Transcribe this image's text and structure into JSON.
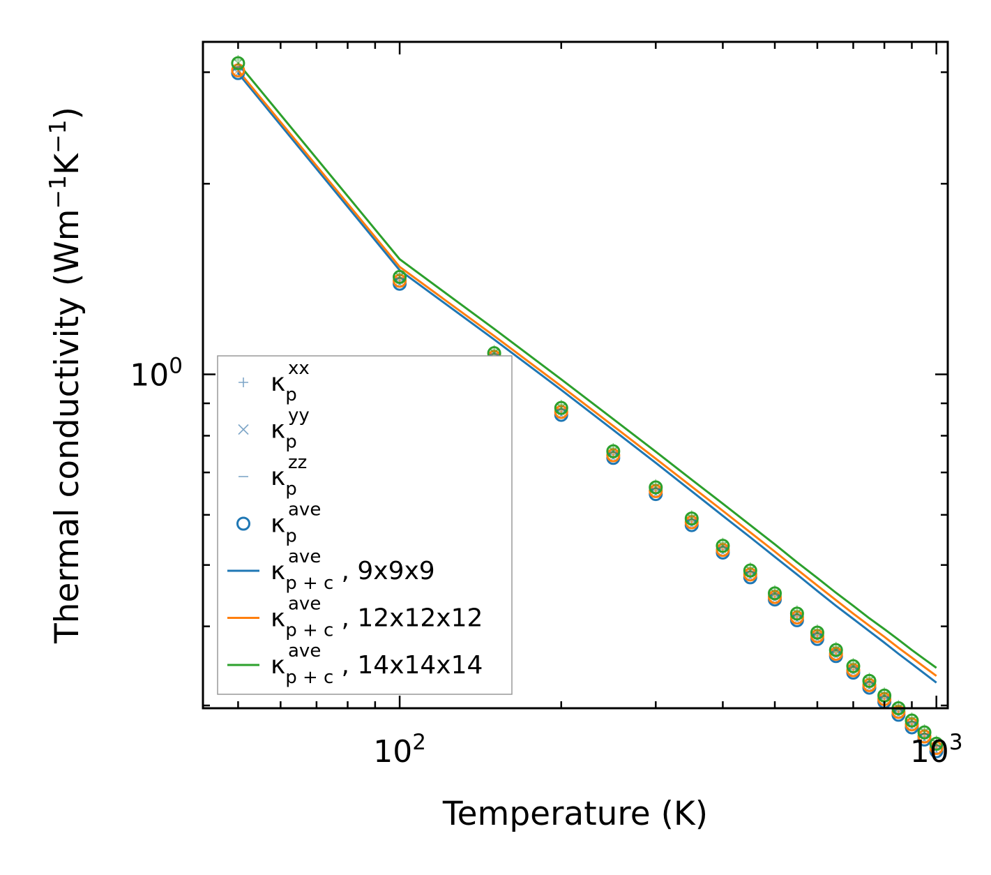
{
  "chart_data": {
    "type": "line",
    "xscale": "log",
    "yscale": "log",
    "xlabel": "Temperature (K)",
    "ylabel": {
      "main": "Thermal conductivity (Wm",
      "sup1": "−1",
      "mid": "K",
      "sup2": "−1",
      "end": ")"
    },
    "xlim": [
      43,
      1050
    ],
    "ylim": [
      0.297,
      3.35
    ],
    "xticks": [
      {
        "value": 100,
        "base": "10",
        "exp": "2"
      },
      {
        "value": 1000,
        "base": "10",
        "exp": "3"
      }
    ],
    "yticks": [
      {
        "value": 1.0,
        "base": "10",
        "exp": "0"
      }
    ],
    "x": [
      50,
      100,
      150,
      200,
      250,
      300,
      350,
      400,
      450,
      500,
      550,
      600,
      650,
      700,
      750,
      800,
      850,
      900,
      950,
      1000
    ],
    "series_lines": [
      {
        "name": "9x9x9",
        "color": "#1f77b4",
        "values": [
          2.99,
          1.46,
          1.135,
          0.945,
          0.817,
          0.725,
          0.654,
          0.598,
          0.553,
          0.515,
          0.483,
          0.455,
          0.431,
          0.411,
          0.393,
          0.377,
          0.362,
          0.349,
          0.337,
          0.326
        ]
      },
      {
        "name": "12x12x12",
        "color": "#ff7f0e",
        "values": [
          3.02,
          1.478,
          1.15,
          0.958,
          0.829,
          0.736,
          0.665,
          0.609,
          0.563,
          0.525,
          0.492,
          0.464,
          0.44,
          0.419,
          0.401,
          0.385,
          0.37,
          0.357,
          0.345,
          0.334
        ]
      },
      {
        "name": "14x14x14",
        "color": "#2ca02c",
        "values": [
          3.1,
          1.52,
          1.18,
          0.982,
          0.85,
          0.755,
          0.682,
          0.625,
          0.578,
          0.539,
          0.505,
          0.477,
          0.452,
          0.431,
          0.412,
          0.396,
          0.381,
          0.367,
          0.355,
          0.344
        ]
      }
    ],
    "series_markers": [
      {
        "name": "ave 9x9x9",
        "color": "#1f77b4",
        "values": [
          2.99,
          1.39,
          1.055,
          0.863,
          0.738,
          0.647,
          0.578,
          0.523,
          0.478,
          0.441,
          0.409,
          0.382,
          0.359,
          0.338,
          0.32,
          0.304,
          0.29,
          0.277,
          0.265,
          0.254
        ]
      },
      {
        "name": "ave 12x12x12",
        "color": "#ff7f0e",
        "values": [
          3.02,
          1.405,
          1.065,
          0.872,
          0.745,
          0.654,
          0.584,
          0.528,
          0.483,
          0.445,
          0.413,
          0.386,
          0.362,
          0.341,
          0.323,
          0.307,
          0.293,
          0.28,
          0.268,
          0.257
        ]
      },
      {
        "name": "ave 14x14x14",
        "color": "#2ca02c",
        "values": [
          3.1,
          1.425,
          1.08,
          0.885,
          0.756,
          0.663,
          0.592,
          0.536,
          0.49,
          0.451,
          0.419,
          0.391,
          0.367,
          0.346,
          0.328,
          0.311,
          0.297,
          0.284,
          0.272,
          0.261
        ]
      }
    ],
    "legend": [
      {
        "kind": "plus",
        "color": "#7fa6c8",
        "sym": "κ",
        "sub": "p",
        "sup": "xx",
        "tail": ""
      },
      {
        "kind": "cross",
        "color": "#7fa6c8",
        "sym": "κ",
        "sub": "p",
        "sup": "yy",
        "tail": ""
      },
      {
        "kind": "dash",
        "color": "#7fa6c8",
        "sym": "κ",
        "sub": "p",
        "sup": "zz",
        "tail": ""
      },
      {
        "kind": "circle",
        "color": "#1f77b4",
        "sym": "κ",
        "sub": "p",
        "sup": "ave",
        "tail": ""
      },
      {
        "kind": "line",
        "color": "#1f77b4",
        "sym": "κ",
        "sub": "p + c",
        "sup": "ave",
        "tail": ", 9x9x9"
      },
      {
        "kind": "line",
        "color": "#ff7f0e",
        "sym": "κ",
        "sub": "p + c",
        "sup": "ave",
        "tail": ", 12x12x12"
      },
      {
        "kind": "line",
        "color": "#2ca02c",
        "sym": "κ",
        "sub": "p + c",
        "sup": "ave",
        "tail": ", 14x14x14"
      }
    ],
    "legend_position": "lower-left"
  }
}
